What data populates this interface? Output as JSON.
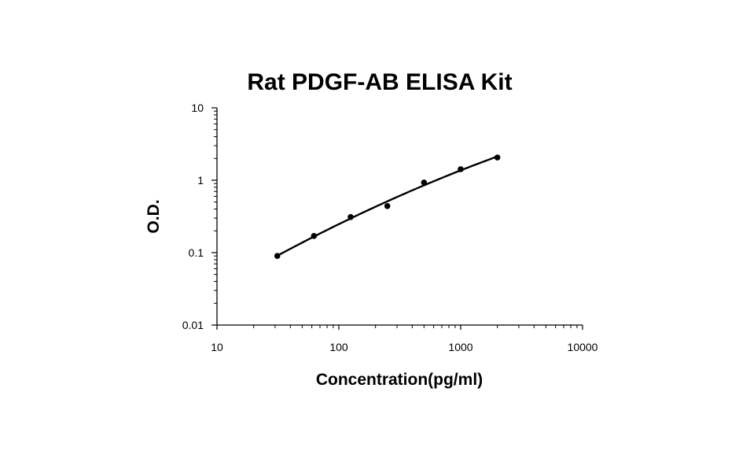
{
  "chart_data": {
    "type": "scatter",
    "title": "Rat PDGF-AB ELISA Kit",
    "xlabel": "Concentration(pg/ml)",
    "ylabel": "O.D.",
    "x_scale": "log",
    "y_scale": "log",
    "xlim": [
      10,
      10000
    ],
    "ylim": [
      0.01,
      10
    ],
    "x_ticks": [
      "10",
      "100",
      "1000",
      "10000"
    ],
    "y_ticks": [
      "0.01",
      "0.1",
      "1",
      "10"
    ],
    "grid": false,
    "legend": "none",
    "series": [
      {
        "x": [
          31.25,
          62.5,
          125,
          250,
          500,
          1000,
          2000
        ],
        "y": [
          0.09,
          0.17,
          0.31,
          0.44,
          0.93,
          1.42,
          2.06
        ],
        "marker": "circle",
        "trendline": "smooth"
      }
    ],
    "colors": {
      "axis": "#000000",
      "marker": "#000000",
      "line": "#000000"
    }
  }
}
